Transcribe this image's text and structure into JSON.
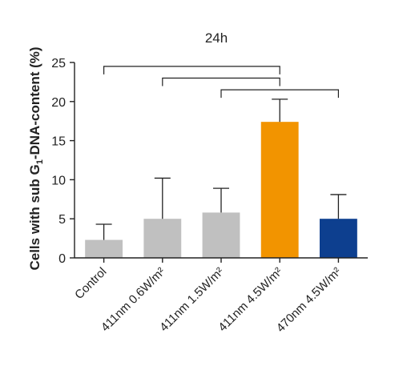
{
  "chart_data": {
    "type": "bar",
    "title": "24h",
    "ylabel_parts": [
      "Cells with sub G",
      "1",
      "-DNA-content (%)"
    ],
    "ylim": [
      0,
      25
    ],
    "yticks": [
      0,
      5,
      10,
      15,
      20,
      25
    ],
    "categories": [
      "Control",
      "411nm 0.6W/m²",
      "411nm 1.5W/m²",
      "411nm 4.5W/m²",
      "470nm 4.5W/m²"
    ],
    "values": [
      2.3,
      5.0,
      5.8,
      17.4,
      5.0
    ],
    "errors": [
      2.0,
      5.2,
      3.1,
      2.9,
      3.1
    ],
    "colors": [
      "#c0c0c0",
      "#c0c0c0",
      "#c0c0c0",
      "#f29400",
      "#0d3f8f"
    ],
    "comparisons": [
      [
        0,
        3
      ],
      [
        1,
        3
      ],
      [
        2,
        4
      ]
    ]
  }
}
